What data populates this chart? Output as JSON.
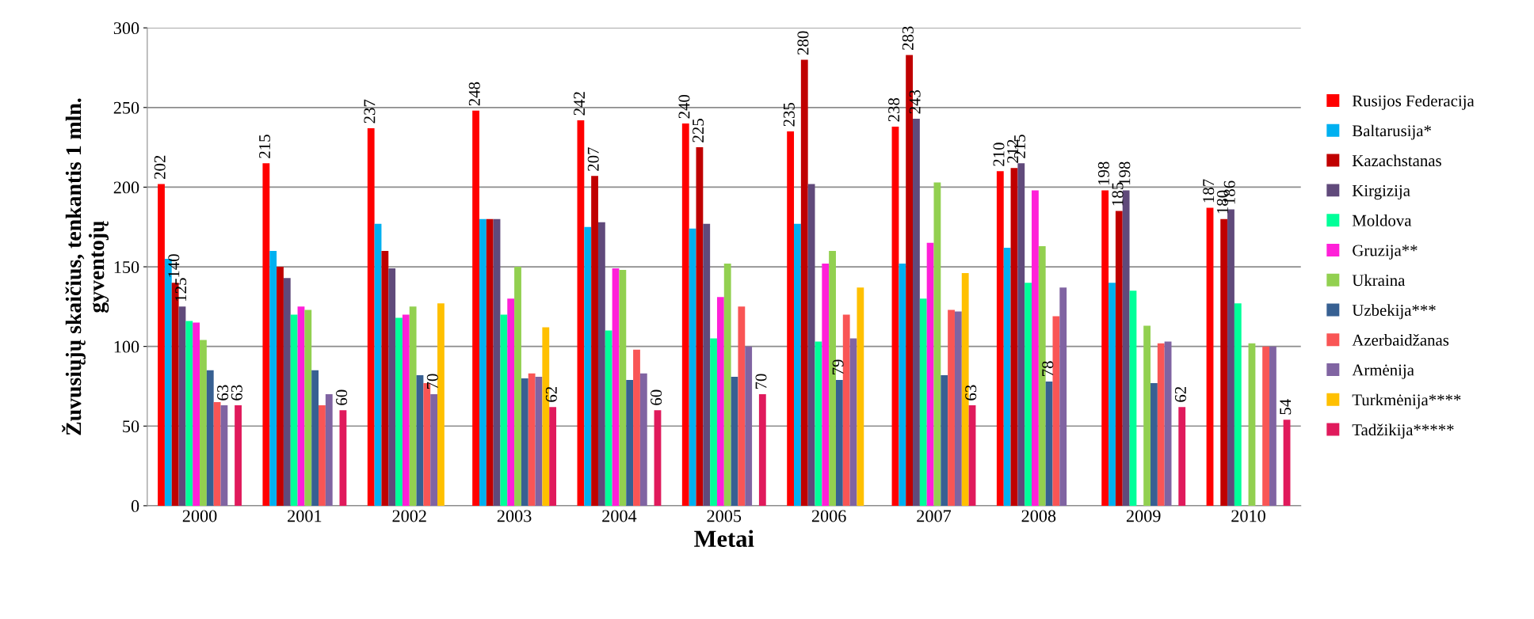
{
  "chart_data": {
    "type": "bar",
    "xlabel": "Metai",
    "ylabel": "Žuvusiųjų skaičius, tenkantis 1 mln.\ngyventojų",
    "categories": [
      "2000",
      "2001",
      "2002",
      "2003",
      "2004",
      "2005",
      "2006",
      "2007",
      "2008",
      "2009",
      "2010"
    ],
    "ylim": [
      0,
      300
    ],
    "yticks": [
      0,
      50,
      100,
      150,
      200,
      250,
      300
    ],
    "grid": "y",
    "legend": "right",
    "series": [
      {
        "name": "Rusijos Federacija",
        "color": "#ff0000",
        "values": [
          202,
          215,
          237,
          248,
          242,
          240,
          235,
          238,
          210,
          198,
          187
        ],
        "value_labels": [
          "202",
          "215",
          "237",
          "248",
          "242",
          "240",
          "235",
          "238",
          "210",
          "198",
          "187"
        ]
      },
      {
        "name": "Baltarusija*",
        "color": "#00b0f0",
        "values": [
          155,
          160,
          177,
          180,
          175,
          174,
          177,
          152,
          162,
          140,
          null
        ]
      },
      {
        "name": "Kazachstanas",
        "color": "#c00000",
        "values": [
          140,
          150,
          160,
          180,
          207,
          225,
          280,
          283,
          212,
          185,
          180
        ],
        "value_labels": [
          "140",
          null,
          null,
          null,
          "207",
          "225",
          "280",
          "283",
          "212",
          "185",
          "180"
        ]
      },
      {
        "name": "Kirgizija",
        "color": "#604a7b",
        "values": [
          125,
          143,
          149,
          180,
          178,
          177,
          202,
          243,
          215,
          198,
          186
        ],
        "value_labels": [
          "125",
          null,
          null,
          null,
          null,
          null,
          null,
          "243",
          "215",
          "198",
          "186"
        ]
      },
      {
        "name": "Moldova",
        "color": "#00ff99",
        "values": [
          116,
          120,
          118,
          120,
          110,
          105,
          103,
          130,
          140,
          135,
          127
        ]
      },
      {
        "name": "Gruzija**",
        "color": "#ff20d8",
        "values": [
          115,
          125,
          120,
          130,
          149,
          131,
          152,
          165,
          198,
          null,
          null
        ]
      },
      {
        "name": "Ukraina",
        "color": "#92d050",
        "values": [
          104,
          123,
          125,
          150,
          148,
          152,
          160,
          203,
          163,
          113,
          102
        ]
      },
      {
        "name": "Uzbekija***",
        "color": "#376092",
        "values": [
          85,
          85,
          82,
          80,
          79,
          81,
          79,
          82,
          78,
          77,
          null
        ],
        "value_labels": [
          null,
          null,
          null,
          null,
          null,
          null,
          "79",
          null,
          "78",
          null,
          null
        ]
      },
      {
        "name": "Azerbaidžanas",
        "color": "#f95555",
        "values": [
          65,
          63,
          77,
          83,
          98,
          125,
          120,
          123,
          119,
          102,
          100
        ]
      },
      {
        "name": "Armėnija",
        "color": "#8064a2",
        "values": [
          63,
          70,
          70,
          81,
          83,
          100,
          105,
          122,
          137,
          103,
          100
        ],
        "value_labels": [
          "63",
          null,
          "70",
          null,
          null,
          null,
          null,
          null,
          null,
          null,
          null
        ]
      },
      {
        "name": "Turkmėnija****",
        "color": "#ffc000",
        "values": [
          null,
          null,
          127,
          112,
          null,
          null,
          137,
          146,
          null,
          null,
          null
        ]
      },
      {
        "name": "Tadžikija*****",
        "color": "#e01a5c",
        "values": [
          63,
          60,
          null,
          62,
          60,
          70,
          null,
          63,
          null,
          62,
          54
        ],
        "value_labels": [
          "63",
          "60",
          null,
          "62",
          "60",
          "70",
          null,
          "63",
          null,
          "62",
          "54"
        ]
      }
    ]
  }
}
